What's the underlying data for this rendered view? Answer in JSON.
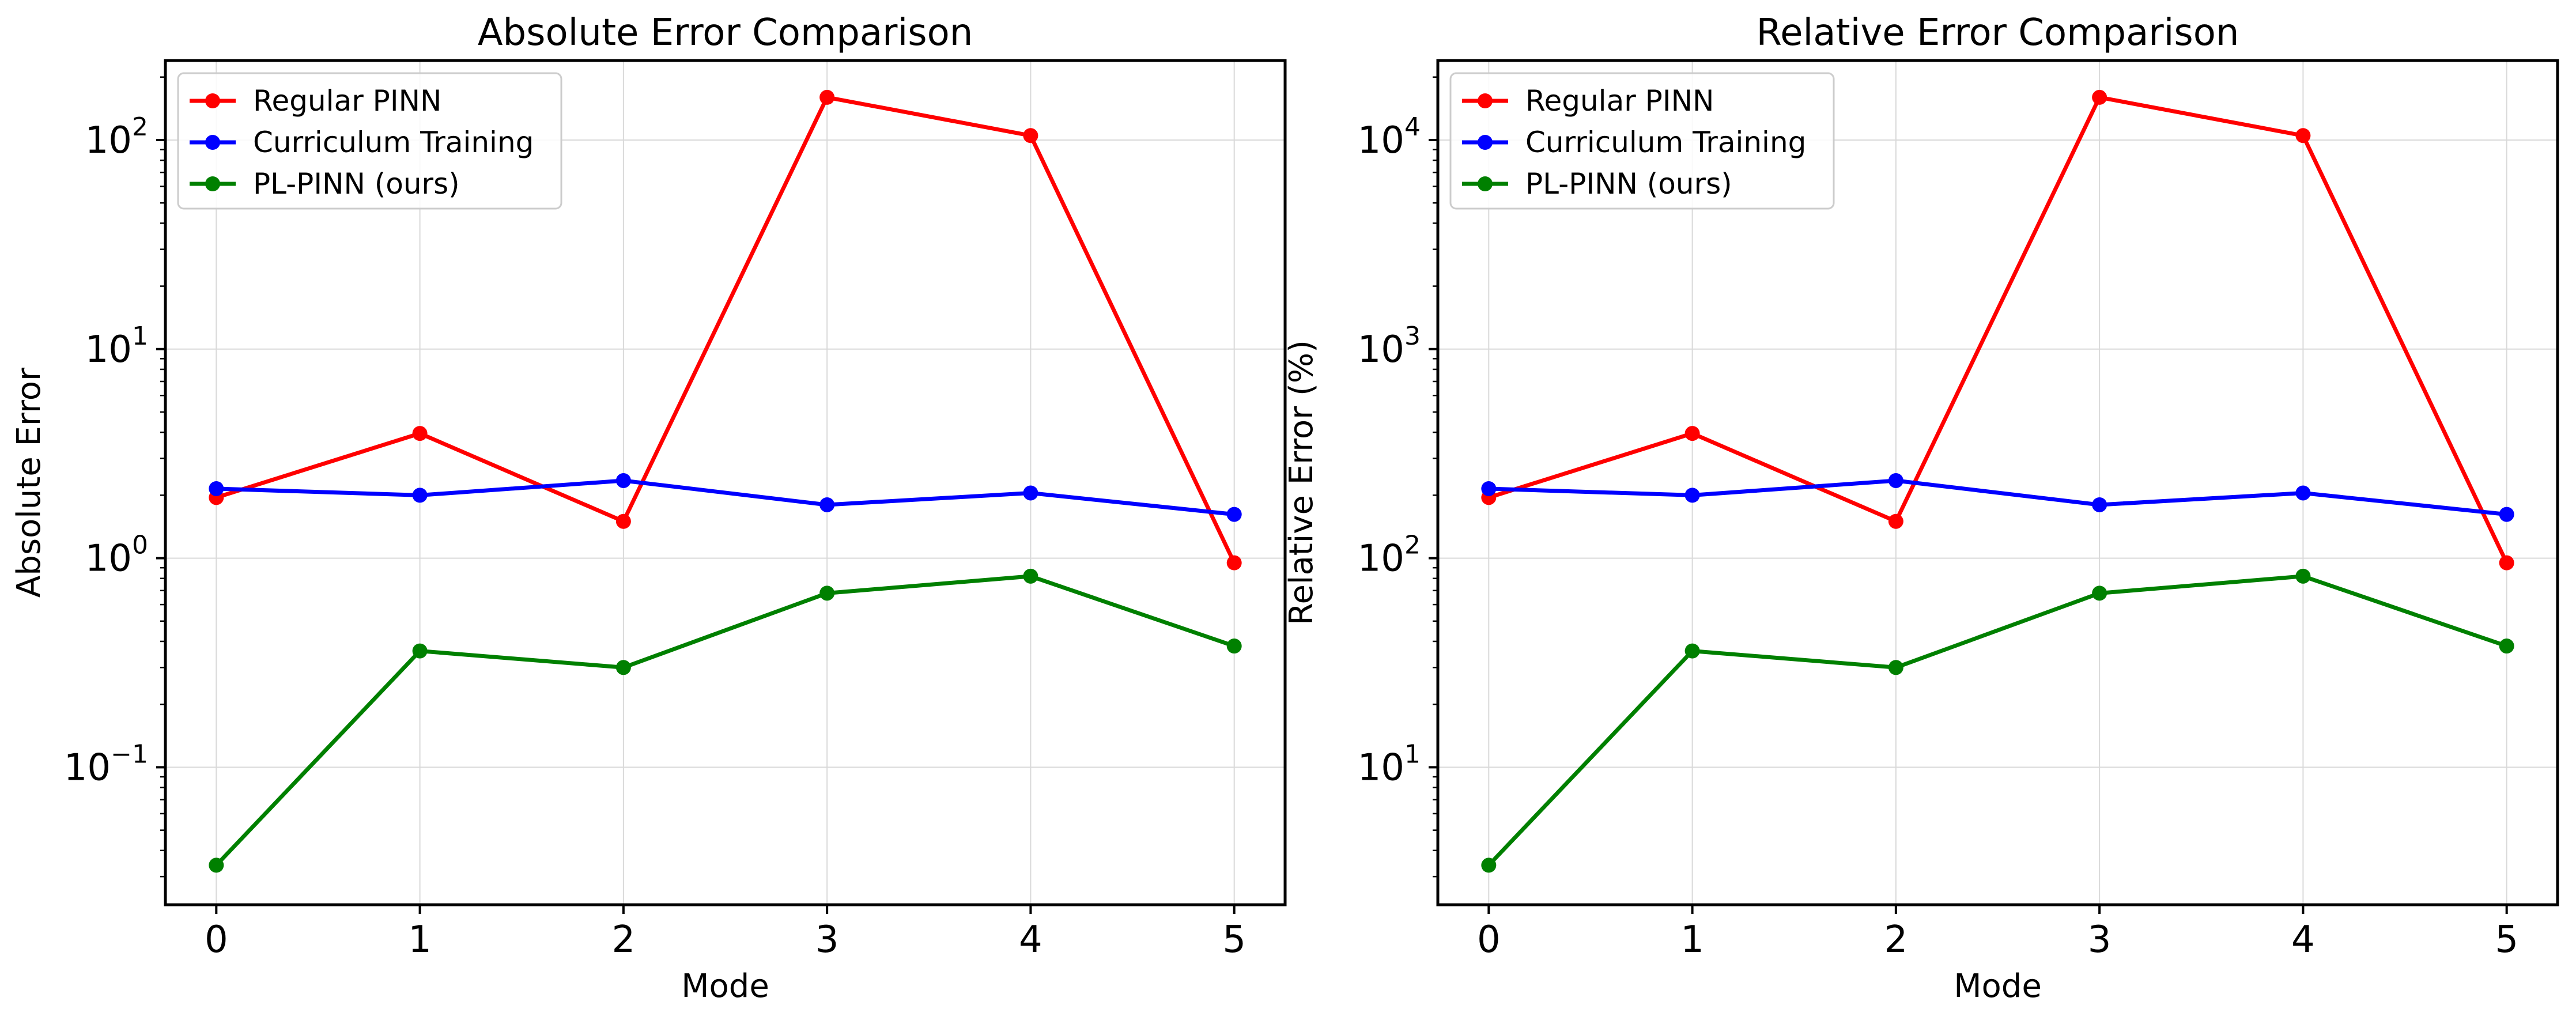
{
  "chart_data": [
    {
      "type": "line",
      "title": "Absolute Error Comparison",
      "xlabel": "Mode",
      "ylabel": "Absolute Error",
      "yscale": "log",
      "grid": true,
      "legend_position": "top-left",
      "x": [
        0,
        1,
        2,
        3,
        4,
        5
      ],
      "xlim": [
        -0.25,
        5.25
      ],
      "ylim": [
        0.022,
        240
      ],
      "ytick_exponents": [
        -1,
        0,
        1,
        2
      ],
      "series": [
        {
          "name": "Regular PINN",
          "color": "#ff0000",
          "values": [
            1.95,
            3.95,
            1.5,
            160,
            105,
            0.95
          ]
        },
        {
          "name": "Curriculum Training",
          "color": "#0000ff",
          "values": [
            2.15,
            2.0,
            2.35,
            1.8,
            2.05,
            1.62
          ]
        },
        {
          "name": "PL-PINN (ours)",
          "color": "#008000",
          "values": [
            0.034,
            0.36,
            0.3,
            0.68,
            0.82,
            0.38
          ]
        }
      ]
    },
    {
      "type": "line",
      "title": "Relative Error Comparison",
      "xlabel": "Mode",
      "ylabel": "Relative Error (%)",
      "yscale": "log",
      "grid": true,
      "legend_position": "top-left",
      "x": [
        0,
        1,
        2,
        3,
        4,
        5
      ],
      "xlim": [
        -0.25,
        5.25
      ],
      "ylim": [
        2.2,
        24000
      ],
      "ytick_exponents": [
        1,
        2,
        3,
        4
      ],
      "series": [
        {
          "name": "Regular PINN",
          "color": "#ff0000",
          "values": [
            195,
            395,
            150,
            16000,
            10500,
            95
          ]
        },
        {
          "name": "Curriculum Training",
          "color": "#0000ff",
          "values": [
            215,
            200,
            235,
            180,
            205,
            162
          ]
        },
        {
          "name": "PL-PINN (ours)",
          "color": "#008000",
          "values": [
            3.4,
            36,
            30,
            68,
            82,
            38
          ]
        }
      ]
    }
  ]
}
